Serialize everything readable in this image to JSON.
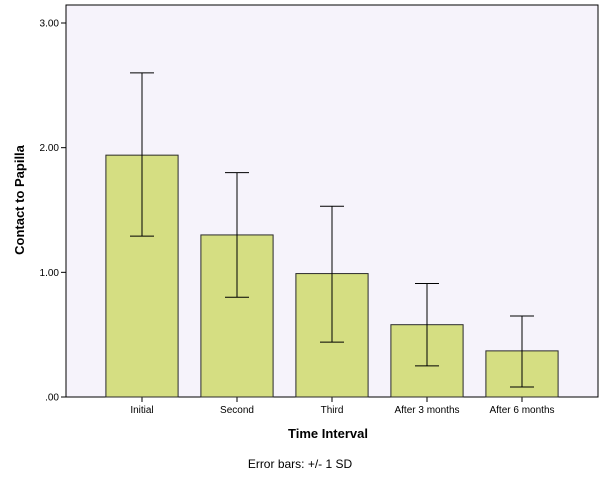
{
  "chart_data": {
    "type": "bar",
    "categories": [
      "Initial",
      "Second",
      "Third",
      "After 3 months",
      "After 6 months"
    ],
    "values": [
      1.94,
      1.3,
      0.99,
      0.58,
      0.37
    ],
    "error_upper": [
      2.6,
      1.8,
      1.53,
      0.91,
      0.65
    ],
    "error_lower": [
      1.29,
      0.8,
      0.44,
      0.25,
      0.08
    ],
    "ylim": [
      0,
      3.0
    ],
    "yticks": [
      0,
      1,
      2,
      3
    ],
    "ytick_labels": [
      ".00",
      "1.00",
      "2.00",
      "3.00"
    ],
    "xlabel": "Time Interval",
    "ylabel": "Contact to Papilla",
    "footnote": "Error bars: +/- 1 SD",
    "grid": false,
    "colors": {
      "plot_background": "#f6f3fb",
      "bar_fill": "#d5de82",
      "bar_stroke": "#2a2a2a",
      "error_bar": "#000000"
    }
  }
}
